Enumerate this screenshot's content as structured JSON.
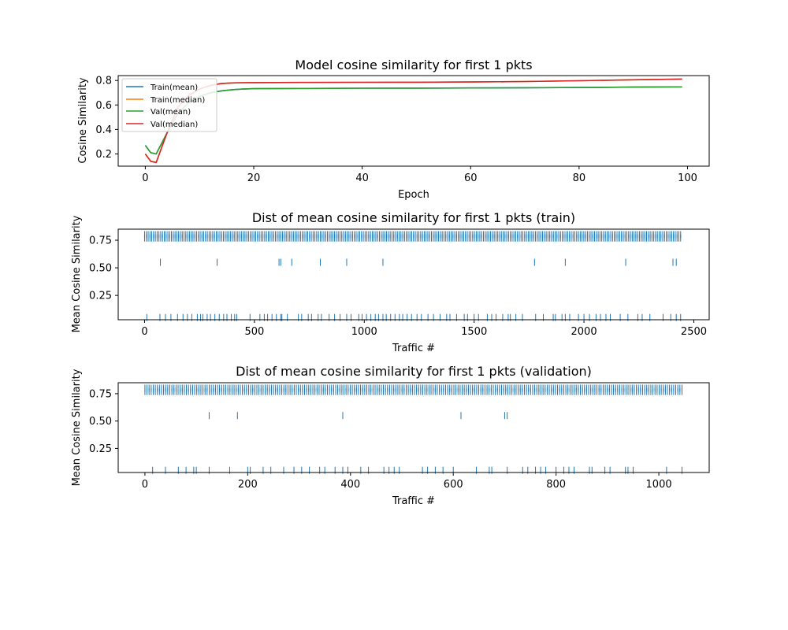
{
  "chart_data": [
    {
      "type": "line",
      "title": "Model cosine similarity for first 1 pkts",
      "xlabel": "Epoch",
      "ylabel": "Cosine Similarity",
      "xlim": [
        -5,
        104
      ],
      "ylim": [
        0.1,
        0.84
      ],
      "xticks": [
        0,
        20,
        40,
        60,
        80,
        100
      ],
      "yticks": [
        0.2,
        0.4,
        0.6,
        0.8
      ],
      "ytick_decimals": 1,
      "legend_position": "top-left",
      "series": [
        {
          "name": "Train(mean)",
          "color": "#1f77b4",
          "x": [
            0,
            1,
            2,
            4,
            6,
            8,
            10,
            12,
            14,
            16,
            18,
            20,
            30,
            40,
            50,
            60,
            70,
            80,
            90,
            99
          ],
          "y": [
            0.27,
            0.21,
            0.2,
            0.37,
            0.53,
            0.62,
            0.67,
            0.7,
            0.715,
            0.725,
            0.73,
            0.733,
            0.735,
            0.737,
            0.738,
            0.739,
            0.741,
            0.743,
            0.746,
            0.748
          ]
        },
        {
          "name": "Train(median)",
          "color": "#ff7f0e",
          "x": [
            0,
            1,
            2,
            4,
            6,
            8,
            10,
            12,
            14,
            16,
            18,
            20,
            30,
            40,
            50,
            60,
            70,
            80,
            90,
            99
          ],
          "y": [
            0.2,
            0.14,
            0.13,
            0.37,
            0.58,
            0.68,
            0.73,
            0.76,
            0.775,
            0.78,
            0.782,
            0.783,
            0.784,
            0.785,
            0.786,
            0.788,
            0.792,
            0.798,
            0.806,
            0.812
          ]
        },
        {
          "name": "Val(mean)",
          "color": "#2ca02c",
          "x": [
            0,
            1,
            2,
            4,
            6,
            8,
            10,
            12,
            14,
            16,
            18,
            20,
            30,
            40,
            50,
            60,
            70,
            80,
            90,
            99
          ],
          "y": [
            0.27,
            0.21,
            0.2,
            0.37,
            0.53,
            0.62,
            0.67,
            0.7,
            0.715,
            0.725,
            0.73,
            0.733,
            0.735,
            0.737,
            0.738,
            0.739,
            0.741,
            0.743,
            0.746,
            0.748
          ]
        },
        {
          "name": "Val(median)",
          "color": "#d62728",
          "x": [
            0,
            1,
            2,
            4,
            6,
            8,
            10,
            12,
            14,
            16,
            18,
            20,
            30,
            40,
            50,
            60,
            70,
            80,
            90,
            99
          ],
          "y": [
            0.2,
            0.14,
            0.13,
            0.37,
            0.58,
            0.68,
            0.73,
            0.76,
            0.775,
            0.78,
            0.782,
            0.783,
            0.784,
            0.785,
            0.786,
            0.788,
            0.792,
            0.798,
            0.806,
            0.812
          ]
        }
      ]
    },
    {
      "type": "scatter",
      "marker": "|",
      "title": "Dist of mean cosine similarity for first 1 pkts (train)",
      "xlabel": "Traffic #",
      "ylabel": "Mean Cosine Similarity",
      "xlim": [
        -120,
        2570
      ],
      "ylim": [
        0.03,
        0.85
      ],
      "xticks": [
        0,
        500,
        1000,
        1500,
        2000,
        2500
      ],
      "yticks": [
        0.25,
        0.5,
        0.75
      ],
      "ytick_decimals": 2,
      "color": "#1f77b4",
      "dense_bands": [
        {
          "y": 0.8,
          "x_from": 0,
          "x_to": 2440,
          "count": 300
        },
        {
          "y": 0.77,
          "x_from": 0,
          "x_to": 2440,
          "count": 300
        }
      ],
      "points": {
        "y": 0.05,
        "x": [
          10,
          70,
          95,
          120,
          150,
          175,
          195,
          215,
          240,
          255,
          265,
          285,
          300,
          320,
          340,
          360,
          375,
          395,
          410,
          420,
          480,
          525,
          545,
          560,
          580,
          600,
          620,
          625,
          650,
          700,
          715,
          745,
          760,
          790,
          805,
          840,
          865,
          890,
          920,
          940,
          975,
          990,
          1010,
          1030,
          1050,
          1065,
          1085,
          1100,
          1120,
          1140,
          1160,
          1175,
          1195,
          1215,
          1240,
          1260,
          1290,
          1315,
          1345,
          1375,
          1390,
          1420,
          1455,
          1470,
          1500,
          1520,
          1560,
          1580,
          1600,
          1630,
          1655,
          1665,
          1690,
          1720,
          1780,
          1815,
          1860,
          1870,
          1900,
          1915,
          1935,
          1975,
          2000,
          2025,
          2055,
          2075,
          2100,
          2120,
          2165,
          2200,
          2245,
          2265,
          2300,
          2360,
          2395,
          2420,
          2440
        ]
      },
      "mid_points": {
        "y": 0.55,
        "x": [
          72,
          330,
          612,
          620,
          670,
          800,
          920,
          1085,
          1775,
          1915,
          2190,
          2405,
          2420
        ]
      }
    },
    {
      "type": "scatter",
      "marker": "|",
      "title": "Dist of mean cosine similarity for first 1 pkts (validation)",
      "xlabel": "Traffic #",
      "ylabel": "Mean Cosine Similarity",
      "xlim": [
        -52,
        1098
      ],
      "ylim": [
        0.03,
        0.85
      ],
      "xticks": [
        0,
        200,
        400,
        600,
        800,
        1000
      ],
      "yticks": [
        0.25,
        0.5,
        0.75
      ],
      "ytick_decimals": 2,
      "color": "#1f77b4",
      "dense_bands": [
        {
          "y": 0.8,
          "x_from": 0,
          "x_to": 1045,
          "count": 260
        },
        {
          "y": 0.77,
          "x_from": 0,
          "x_to": 1045,
          "count": 260
        }
      ],
      "points": {
        "y": 0.05,
        "x": [
          15,
          40,
          65,
          80,
          95,
          100,
          125,
          165,
          200,
          205,
          230,
          245,
          270,
          290,
          305,
          320,
          340,
          350,
          370,
          385,
          395,
          420,
          435,
          465,
          475,
          485,
          495,
          540,
          550,
          565,
          580,
          600,
          645,
          670,
          675,
          705,
          735,
          745,
          760,
          770,
          780,
          800,
          815,
          825,
          835,
          865,
          870,
          895,
          905,
          935,
          940,
          950,
          1015,
          1045
        ]
      },
      "mid_points": {
        "y": 0.55,
        "x": [
          125,
          180,
          385,
          615,
          700,
          705
        ]
      }
    }
  ]
}
